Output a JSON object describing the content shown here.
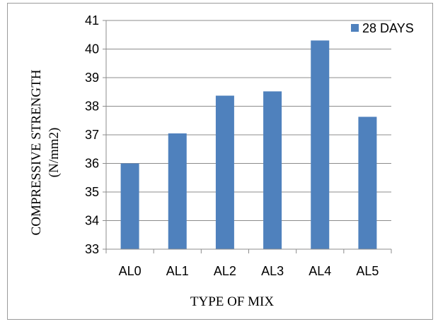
{
  "chart_data": {
    "type": "bar",
    "categories": [
      "AL0",
      "AL1",
      "AL2",
      "AL3",
      "AL4",
      "AL5"
    ],
    "series": [
      {
        "name": "28 DAYS",
        "values": [
          36.0,
          37.05,
          38.37,
          38.52,
          40.3,
          37.63
        ],
        "color": "#4f81bd"
      }
    ],
    "xlabel": "TYPE OF MIX",
    "ylabel_line1": "COMPRESSIVE STRENGTH",
    "ylabel_line2": "(N/mm2)",
    "ylim": [
      33,
      41
    ],
    "yticks": [
      33,
      34,
      35,
      36,
      37,
      38,
      39,
      40,
      41
    ],
    "grid": true,
    "legend_position": "top-right"
  }
}
